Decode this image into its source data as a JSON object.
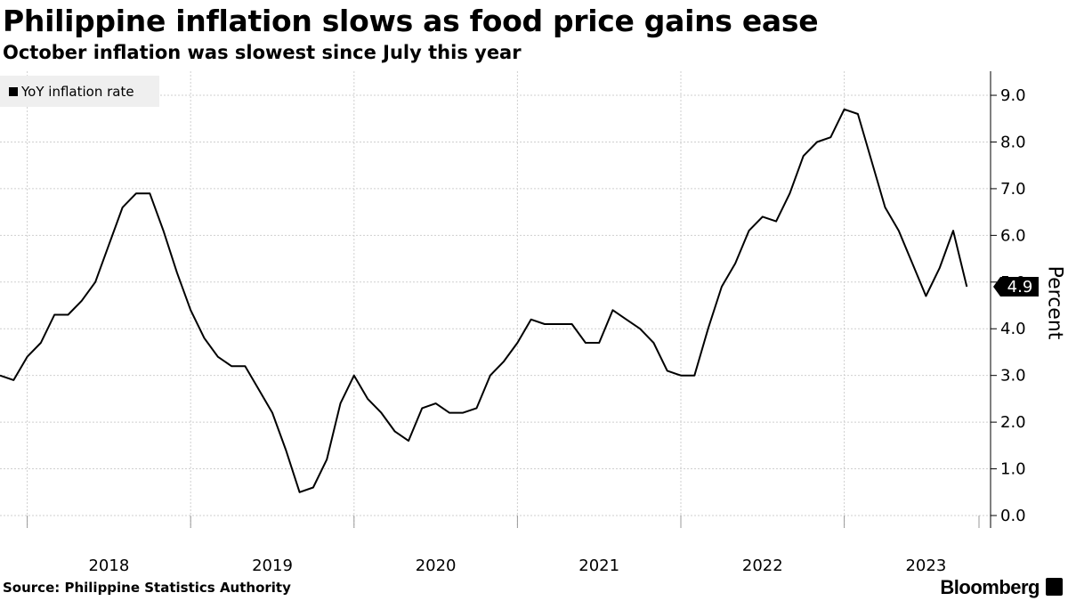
{
  "chart_data": {
    "type": "line",
    "title": "Philippine inflation slows as food price gains ease",
    "subtitle": "October inflation was slowest since July this year",
    "ylabel": "Percent",
    "xlabel": "",
    "ylim": [
      0,
      9
    ],
    "yticks": [
      0,
      1,
      2,
      3,
      4,
      5,
      6,
      7,
      8,
      9
    ],
    "ytick_labels": [
      "0.0",
      "1.0",
      "2.0",
      "3.0",
      "4.0",
      "5.0",
      "6.0",
      "7.0",
      "8.0",
      "9.0"
    ],
    "xtick_labels": [
      "2018",
      "2019",
      "2020",
      "2021",
      "2022",
      "2023"
    ],
    "last_value_label": "4.9",
    "grid": true,
    "legend_position": "top-left",
    "series": [
      {
        "name": "YoY inflation rate",
        "color": "#000000",
        "start": "2017-11",
        "values": [
          3.0,
          2.9,
          3.4,
          3.7,
          4.3,
          4.3,
          4.6,
          5.0,
          5.8,
          6.6,
          6.9,
          6.9,
          6.1,
          5.2,
          4.4,
          3.8,
          3.4,
          3.2,
          3.2,
          2.7,
          2.2,
          1.4,
          0.5,
          0.6,
          1.2,
          2.4,
          3.0,
          2.5,
          2.2,
          1.8,
          1.6,
          2.3,
          2.4,
          2.2,
          2.2,
          2.3,
          3.0,
          3.3,
          3.7,
          4.2,
          4.1,
          4.1,
          4.1,
          3.7,
          3.7,
          4.4,
          4.2,
          4.0,
          3.7,
          3.1,
          3.0,
          3.0,
          4.0,
          4.9,
          5.4,
          6.1,
          6.4,
          6.3,
          6.9,
          7.7,
          8.0,
          8.1,
          8.7,
          8.6,
          7.6,
          6.6,
          6.1,
          5.4,
          4.7,
          5.3,
          6.1,
          4.9
        ]
      }
    ],
    "source": "Source:  Philippine Statistics Authority",
    "brand": "Bloomberg"
  }
}
